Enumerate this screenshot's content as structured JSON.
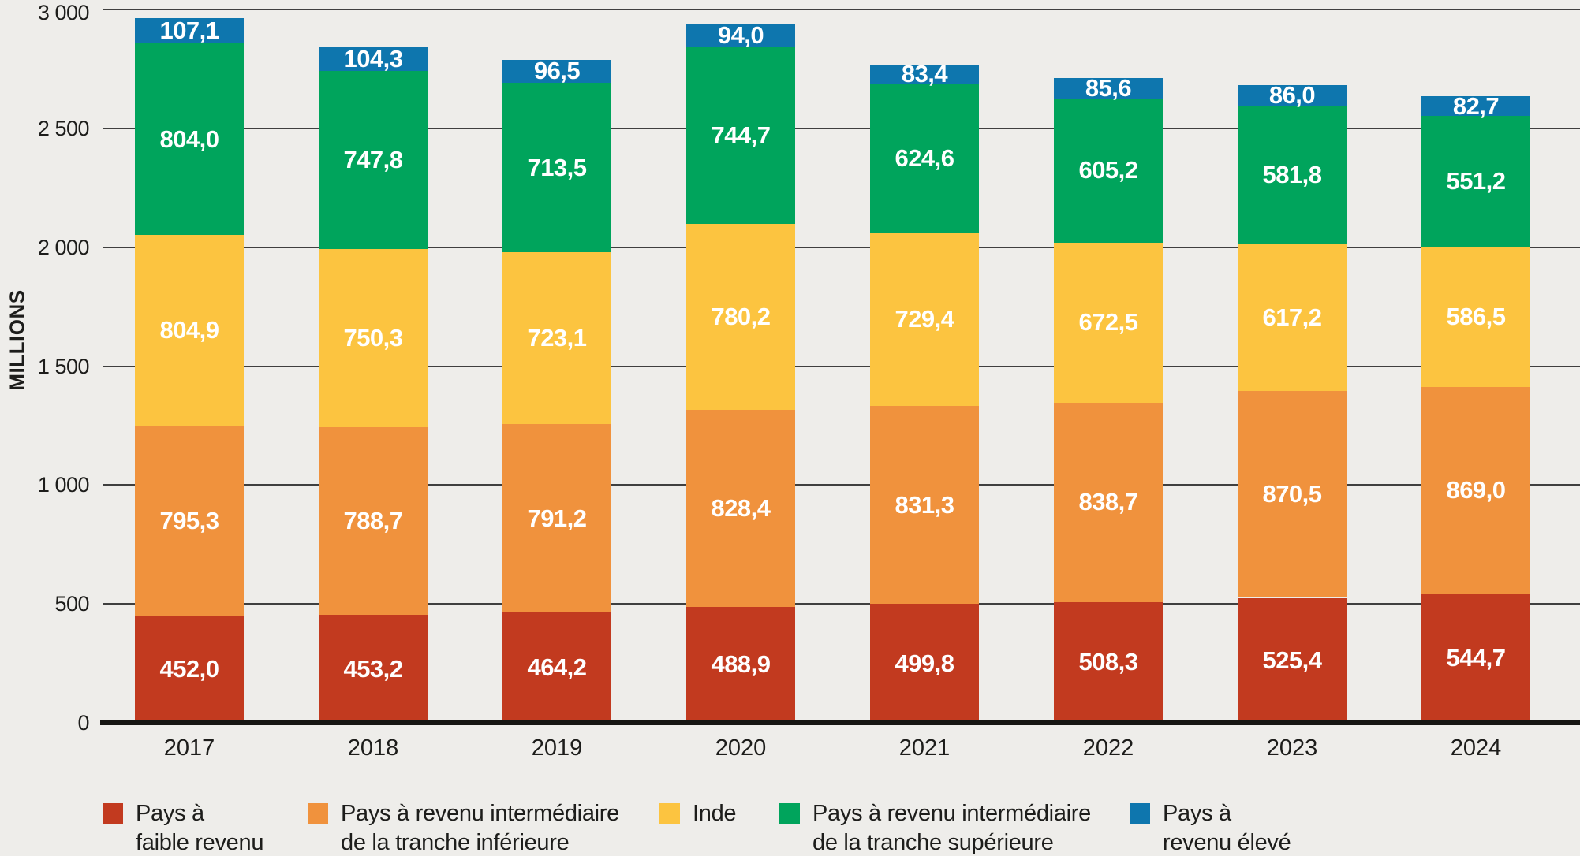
{
  "chart_data": {
    "type": "bar",
    "stacked": true,
    "title": "",
    "xlabel": "",
    "ylabel": "MILLIONS",
    "categories": [
      "2017",
      "2018",
      "2019",
      "2020",
      "2021",
      "2022",
      "2023",
      "2024"
    ],
    "y_axis": {
      "min": 0,
      "max": 3000,
      "tick_interval": 500,
      "tick_labels": [
        "0",
        "500",
        "1 000",
        "1 500",
        "2 000",
        "2 500",
        "3 000"
      ]
    },
    "grid": "horizontal",
    "legend_position": "bottom",
    "decimal_separator": ",",
    "series": [
      {
        "name": "Pays à faible revenu",
        "legend_lines": [
          "Pays à",
          "faible revenu"
        ],
        "color": "#c23a1f",
        "values": [
          452.0,
          453.2,
          464.2,
          488.9,
          499.8,
          508.3,
          525.4,
          544.7
        ]
      },
      {
        "name": "Pays à revenu intermédiaire de la tranche inférieure",
        "legend_lines": [
          "Pays à revenu intermédiaire",
          "de la tranche inférieure"
        ],
        "color": "#f0923d",
        "values": [
          795.3,
          788.7,
          791.2,
          828.4,
          831.3,
          838.7,
          870.5,
          869.0
        ]
      },
      {
        "name": "Inde",
        "legend_lines": [
          "Inde"
        ],
        "color": "#fcc440",
        "values": [
          804.9,
          750.3,
          723.1,
          780.2,
          729.4,
          672.5,
          617.2,
          586.5
        ]
      },
      {
        "name": "Pays à revenu intermédiaire de la tranche supérieure",
        "legend_lines": [
          "Pays à revenu intermédiaire",
          "de la tranche supérieure"
        ],
        "color": "#00a45c",
        "values": [
          804.0,
          747.8,
          713.5,
          744.7,
          624.6,
          605.2,
          581.8,
          551.2
        ]
      },
      {
        "name": "Pays à revenu élevé",
        "legend_lines": [
          "Pays à",
          "revenu élevé"
        ],
        "color": "#0e76ae",
        "values": [
          107.1,
          104.3,
          96.5,
          94.0,
          83.4,
          85.6,
          86.0,
          82.7
        ]
      }
    ],
    "colors": {
      "background": "#eeedea",
      "text": "#1d1d1b",
      "gridline": "#3f3f3f",
      "axis": "#161613",
      "value_label": "#ffffff"
    }
  }
}
